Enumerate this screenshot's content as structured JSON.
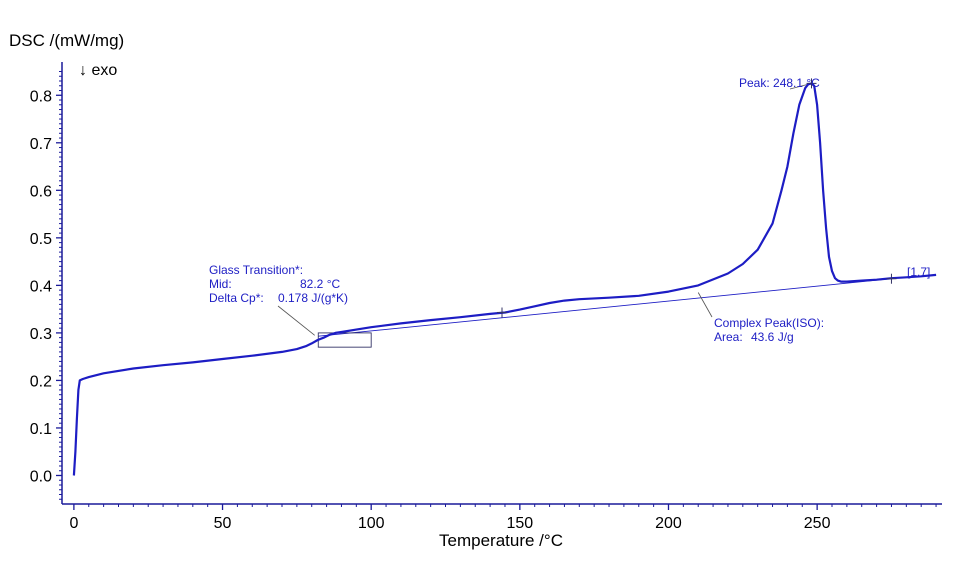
{
  "chart_data": {
    "type": "line",
    "title": "",
    "ylabel": "DSC /(mW/mg)",
    "exo_label": "↓ exo",
    "xlabel": "Temperature /°C",
    "xlim": [
      -4,
      292
    ],
    "ylim": [
      -0.06,
      0.87
    ],
    "grid": false,
    "colors": {
      "curve": "#1d1dc4",
      "annotation": "#1d1dc4",
      "axis": "#1a1a9a"
    },
    "x_ticks": [
      {
        "value": 0,
        "label": "0"
      },
      {
        "value": 50,
        "label": "50"
      },
      {
        "value": 100,
        "label": "100"
      },
      {
        "value": 150,
        "label": "150"
      },
      {
        "value": 200,
        "label": "200"
      },
      {
        "value": 250,
        "label": "250"
      }
    ],
    "y_ticks": [
      {
        "value": 0.0,
        "label": "0.0"
      },
      {
        "value": 0.1,
        "label": "0.1"
      },
      {
        "value": 0.2,
        "label": "0.2"
      },
      {
        "value": 0.3,
        "label": "0.3"
      },
      {
        "value": 0.4,
        "label": "0.4"
      },
      {
        "value": 0.5,
        "label": "0.5"
      },
      {
        "value": 0.6,
        "label": "0.6"
      },
      {
        "value": 0.7,
        "label": "0.7"
      },
      {
        "value": 0.8,
        "label": "0.8"
      }
    ],
    "series": [
      {
        "name": "DSC",
        "x": [
          0,
          0.5,
          1,
          1.5,
          2,
          3,
          5,
          10,
          20,
          30,
          40,
          50,
          60,
          70,
          75,
          78,
          80,
          82,
          84,
          86,
          88,
          90,
          95,
          100,
          110,
          120,
          130,
          140,
          145,
          150,
          155,
          160,
          165,
          170,
          180,
          190,
          200,
          210,
          220,
          225,
          230,
          235,
          238,
          240,
          242,
          244,
          246,
          247,
          248.1,
          249,
          250,
          251,
          252,
          253,
          254,
          255,
          256,
          257,
          258,
          260,
          265,
          270,
          275,
          280,
          285,
          290
        ],
        "values": [
          0.0,
          0.05,
          0.12,
          0.18,
          0.2,
          0.203,
          0.207,
          0.215,
          0.225,
          0.232,
          0.238,
          0.245,
          0.252,
          0.26,
          0.266,
          0.272,
          0.278,
          0.285,
          0.29,
          0.296,
          0.3,
          0.302,
          0.307,
          0.312,
          0.32,
          0.327,
          0.333,
          0.34,
          0.343,
          0.349,
          0.356,
          0.363,
          0.368,
          0.371,
          0.374,
          0.378,
          0.387,
          0.4,
          0.425,
          0.445,
          0.475,
          0.53,
          0.6,
          0.65,
          0.72,
          0.78,
          0.815,
          0.823,
          0.825,
          0.82,
          0.78,
          0.7,
          0.6,
          0.52,
          0.46,
          0.43,
          0.415,
          0.41,
          0.408,
          0.408,
          0.41,
          0.412,
          0.415,
          0.417,
          0.419,
          0.422
        ]
      }
    ],
    "baseline": {
      "x": [
        82.2,
        275
      ],
      "values": [
        0.293,
        0.414
      ]
    },
    "markers": [
      {
        "x": 144,
        "y": 0.343
      },
      {
        "x": 248.1,
        "y": 0.825
      },
      {
        "x": 275,
        "y": 0.414
      }
    ],
    "glass_box": {
      "x": [
        82.2,
        100
      ],
      "values": [
        0.27,
        0.3
      ]
    },
    "annotations": {
      "peak": {
        "text": "Peak: 248.1 °C",
        "point": {
          "x": 248.1,
          "y": 0.825
        }
      },
      "glass_transition": {
        "title": "Glass Transition*:",
        "mid_label": "Mid:",
        "mid_value": "82.2 °C",
        "delta_label": "Delta Cp*:",
        "delta_value": "0.178 J/(g*K)",
        "point": {
          "x": 81,
          "y": 0.295
        }
      },
      "complex_peak": {
        "title": "Complex Peak(ISO):",
        "area_label": "Area:",
        "area_value": "43.6 J/g",
        "point": {
          "x": 210,
          "y": 0.385
        }
      },
      "end_label": "[1.7]"
    }
  }
}
